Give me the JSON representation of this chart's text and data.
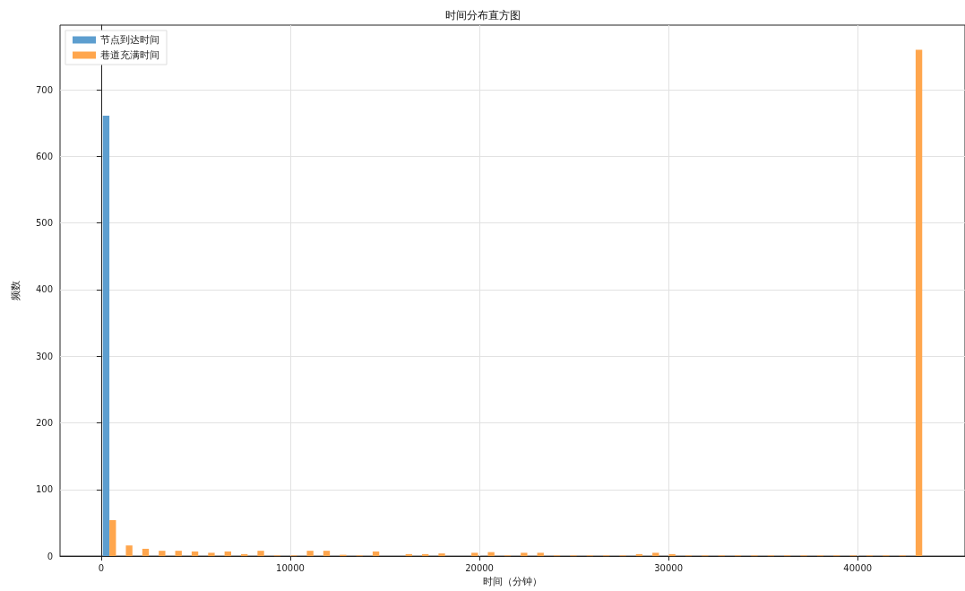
{
  "chart_data": {
    "type": "histogram",
    "title": "时间分布直方图",
    "xlabel": "时间（分钟）",
    "ylabel": "频数",
    "bins": [
      0,
      870,
      1740,
      2610,
      3480,
      4350,
      5220,
      6090,
      6960,
      7830,
      8700,
      9570,
      10440,
      11310,
      12180,
      13050,
      13920,
      14790,
      15660,
      16530,
      17400,
      18270,
      19140,
      20010,
      20880,
      21750,
      22620,
      23490,
      24360,
      25230,
      26100,
      26970,
      27840,
      28710,
      29580,
      30450,
      31320,
      32190,
      33060,
      33930,
      34800,
      35670,
      36540,
      37410,
      38280,
      39150,
      40020,
      40890,
      41760,
      42630,
      43500
    ],
    "series": [
      {
        "name": "节点到达时间",
        "color": "#5d9ecf",
        "values": [
          661,
          0,
          0,
          0,
          0,
          0,
          0,
          0,
          0,
          0,
          0,
          0,
          0,
          0,
          0,
          0,
          0,
          0,
          0,
          0,
          0,
          0,
          0,
          0,
          0,
          0,
          0,
          0,
          0,
          0,
          0,
          0,
          0,
          0,
          0,
          0,
          0,
          0,
          0,
          0,
          0,
          0,
          0,
          0,
          0,
          0,
          0,
          0,
          0,
          0
        ]
      },
      {
        "name": "巷道充满时间",
        "color": "#ffa64d",
        "values": [
          54,
          16,
          11,
          8,
          8,
          7,
          5,
          7,
          3,
          8,
          1,
          1,
          8,
          8,
          2,
          1,
          7,
          0,
          3,
          3,
          4,
          0,
          5,
          6,
          1,
          5,
          5,
          1,
          1,
          1,
          1,
          1,
          3,
          5,
          3,
          1,
          1,
          1,
          1,
          1,
          1,
          1,
          1,
          1,
          1,
          1,
          1,
          1,
          1,
          760
        ]
      }
    ],
    "xlim": [
      -2175,
      45675
    ],
    "xticks": [
      0,
      10000,
      20000,
      30000,
      40000
    ],
    "ylim": [
      0,
      797
    ],
    "yticks": [
      0,
      100,
      200,
      300,
      400,
      500,
      600,
      700
    ],
    "grid": true,
    "legend": "top left"
  }
}
